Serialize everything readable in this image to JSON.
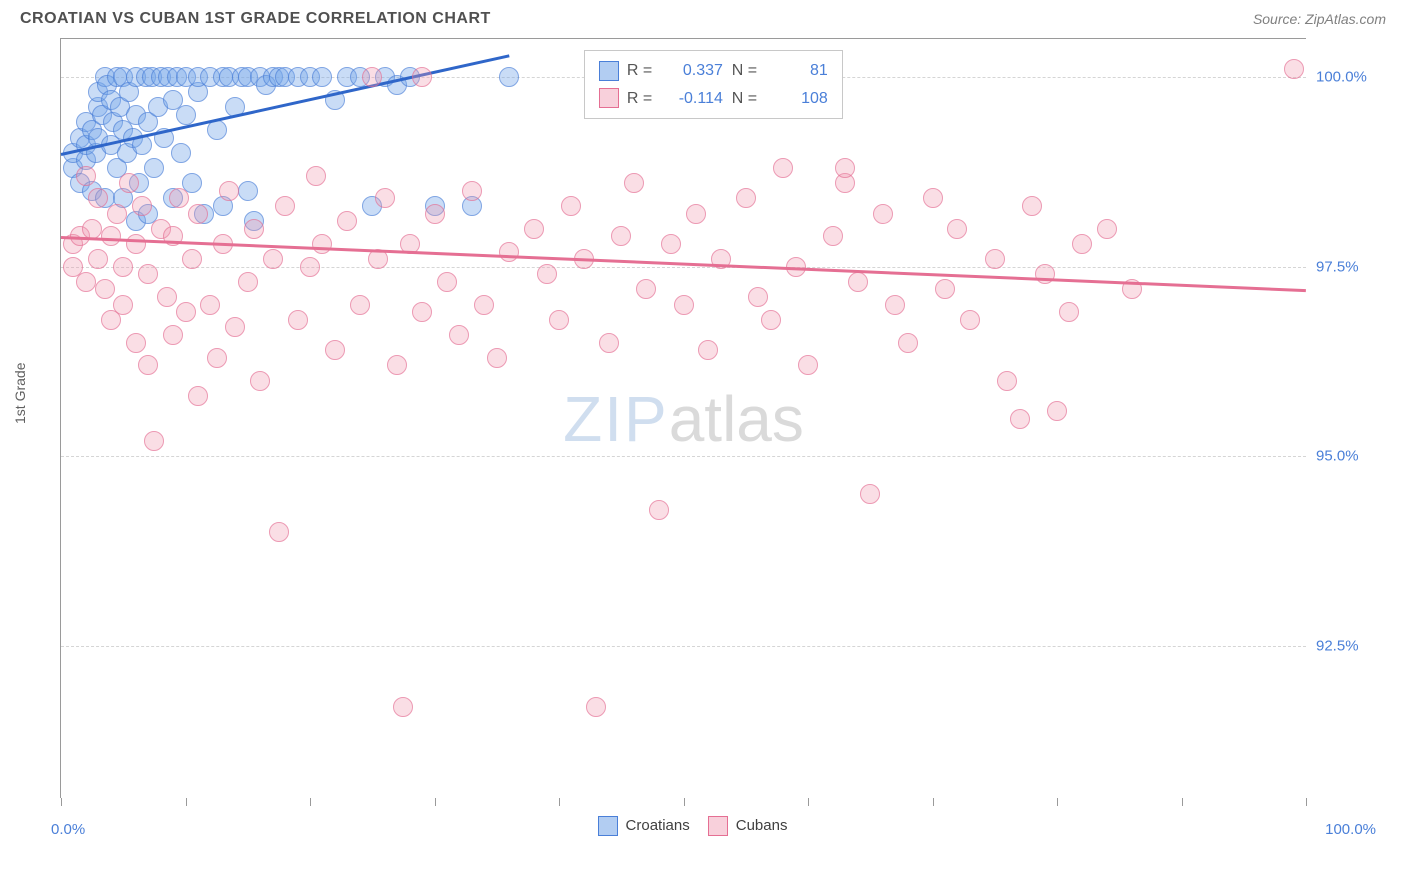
{
  "header": {
    "title": "CROATIAN VS CUBAN 1ST GRADE CORRELATION CHART",
    "source": "Source: ZipAtlas.com"
  },
  "chart": {
    "type": "scatter",
    "ylabel": "1st Grade",
    "xlim": [
      0,
      100
    ],
    "ylim": [
      90.5,
      100.5
    ],
    "xlim_labels": [
      "0.0%",
      "100.0%"
    ],
    "ytick_values": [
      92.5,
      95.0,
      97.5,
      100.0
    ],
    "ytick_labels": [
      "92.5%",
      "95.0%",
      "97.5%",
      "100.0%"
    ],
    "xtick_values": [
      0,
      10,
      20,
      30,
      40,
      50,
      60,
      70,
      80,
      90,
      100
    ],
    "marker_radius": 10,
    "background_color": "#ffffff",
    "grid_color": "#d5d5d5",
    "axis_color": "#9a9a9a",
    "tick_color": "#4a7fd8",
    "stats_box": {
      "left_pct": 42,
      "top_pct": 1.5
    },
    "series": [
      {
        "name": "Croatians",
        "fill": "rgba(115,164,232,0.55)",
        "stroke": "#4a7fd8",
        "trend_color": "#2f66c9",
        "R": "0.337",
        "N": "81",
        "trend": {
          "x1": 0,
          "y1": 99.0,
          "x2": 36,
          "y2": 100.3
        },
        "points": [
          [
            1,
            98.8
          ],
          [
            1,
            99.0
          ],
          [
            1.5,
            99.2
          ],
          [
            1.5,
            98.6
          ],
          [
            2,
            98.9
          ],
          [
            2,
            99.4
          ],
          [
            2,
            99.1
          ],
          [
            2.5,
            98.5
          ],
          [
            2.5,
            99.3
          ],
          [
            2.8,
            99.0
          ],
          [
            3,
            99.6
          ],
          [
            3,
            99.2
          ],
          [
            3,
            99.8
          ],
          [
            3.3,
            99.5
          ],
          [
            3.5,
            100.0
          ],
          [
            3.5,
            98.4
          ],
          [
            3.7,
            99.9
          ],
          [
            4,
            99.1
          ],
          [
            4,
            99.7
          ],
          [
            4.2,
            99.4
          ],
          [
            4.5,
            100.0
          ],
          [
            4.5,
            98.8
          ],
          [
            4.7,
            99.6
          ],
          [
            5,
            98.4
          ],
          [
            5,
            99.3
          ],
          [
            5,
            100.0
          ],
          [
            5.3,
            99.0
          ],
          [
            5.5,
            99.8
          ],
          [
            5.8,
            99.2
          ],
          [
            6,
            98.1
          ],
          [
            6,
            99.5
          ],
          [
            6,
            100.0
          ],
          [
            6.3,
            98.6
          ],
          [
            6.5,
            99.1
          ],
          [
            6.8,
            100.0
          ],
          [
            7,
            98.2
          ],
          [
            7,
            99.4
          ],
          [
            7.3,
            100.0
          ],
          [
            7.5,
            98.8
          ],
          [
            7.8,
            99.6
          ],
          [
            8,
            100.0
          ],
          [
            8.3,
            99.2
          ],
          [
            8.6,
            100.0
          ],
          [
            9,
            98.4
          ],
          [
            9,
            99.7
          ],
          [
            9.3,
            100.0
          ],
          [
            9.6,
            99.0
          ],
          [
            10,
            99.5
          ],
          [
            10,
            100.0
          ],
          [
            10.5,
            98.6
          ],
          [
            11,
            99.8
          ],
          [
            11,
            100.0
          ],
          [
            11.5,
            98.2
          ],
          [
            12,
            100.0
          ],
          [
            12.5,
            99.3
          ],
          [
            13,
            98.3
          ],
          [
            13,
            100.0
          ],
          [
            13.5,
            100.0
          ],
          [
            14,
            99.6
          ],
          [
            14.5,
            100.0
          ],
          [
            15,
            98.5
          ],
          [
            15,
            100.0
          ],
          [
            15.5,
            98.1
          ],
          [
            16,
            100.0
          ],
          [
            16.5,
            99.9
          ],
          [
            17,
            100.0
          ],
          [
            17.5,
            100.0
          ],
          [
            18,
            100.0
          ],
          [
            19,
            100.0
          ],
          [
            20,
            100.0
          ],
          [
            21,
            100.0
          ],
          [
            22,
            99.7
          ],
          [
            23,
            100.0
          ],
          [
            24,
            100.0
          ],
          [
            25,
            98.3
          ],
          [
            26,
            100.0
          ],
          [
            27,
            99.9
          ],
          [
            28,
            100.0
          ],
          [
            30,
            98.3
          ],
          [
            33,
            98.3
          ],
          [
            36,
            100.0
          ]
        ]
      },
      {
        "name": "Cubans",
        "fill": "rgba(240,150,175,0.45)",
        "stroke": "#e56f93",
        "trend_color": "#e56f93",
        "R": "-0.114",
        "N": "108",
        "trend": {
          "x1": 0,
          "y1": 97.9,
          "x2": 100,
          "y2": 97.2
        },
        "points": [
          [
            1,
            97.8
          ],
          [
            1,
            97.5
          ],
          [
            1.5,
            97.9
          ],
          [
            2,
            98.7
          ],
          [
            2,
            97.3
          ],
          [
            2.5,
            98.0
          ],
          [
            3,
            97.6
          ],
          [
            3,
            98.4
          ],
          [
            3.5,
            97.2
          ],
          [
            4,
            97.9
          ],
          [
            4,
            96.8
          ],
          [
            4.5,
            98.2
          ],
          [
            5,
            97.5
          ],
          [
            5,
            97.0
          ],
          [
            5.5,
            98.6
          ],
          [
            6,
            96.5
          ],
          [
            6,
            97.8
          ],
          [
            6.5,
            98.3
          ],
          [
            7,
            96.2
          ],
          [
            7,
            97.4
          ],
          [
            7.5,
            95.2
          ],
          [
            8,
            98.0
          ],
          [
            8.5,
            97.1
          ],
          [
            9,
            96.6
          ],
          [
            9,
            97.9
          ],
          [
            9.5,
            98.4
          ],
          [
            10,
            96.9
          ],
          [
            10.5,
            97.6
          ],
          [
            11,
            95.8
          ],
          [
            11,
            98.2
          ],
          [
            12,
            97.0
          ],
          [
            12.5,
            96.3
          ],
          [
            13,
            97.8
          ],
          [
            13.5,
            98.5
          ],
          [
            14,
            96.7
          ],
          [
            15,
            97.3
          ],
          [
            15.5,
            98.0
          ],
          [
            16,
            96.0
          ],
          [
            17,
            97.6
          ],
          [
            17.5,
            94.0
          ],
          [
            18,
            98.3
          ],
          [
            19,
            96.8
          ],
          [
            20,
            97.5
          ],
          [
            20.5,
            98.7
          ],
          [
            21,
            97.8
          ],
          [
            22,
            96.4
          ],
          [
            23,
            98.1
          ],
          [
            24,
            97.0
          ],
          [
            25,
            100.0
          ],
          [
            25.5,
            97.6
          ],
          [
            26,
            98.4
          ],
          [
            27,
            96.2
          ],
          [
            27.5,
            91.7
          ],
          [
            28,
            97.8
          ],
          [
            29,
            96.9
          ],
          [
            30,
            98.2
          ],
          [
            31,
            97.3
          ],
          [
            32,
            96.6
          ],
          [
            33,
            98.5
          ],
          [
            34,
            97.0
          ],
          [
            35,
            96.3
          ],
          [
            36,
            97.7
          ],
          [
            38,
            98.0
          ],
          [
            39,
            97.4
          ],
          [
            40,
            96.8
          ],
          [
            41,
            98.3
          ],
          [
            42,
            97.6
          ],
          [
            43,
            91.7
          ],
          [
            44,
            96.5
          ],
          [
            45,
            97.9
          ],
          [
            46,
            98.6
          ],
          [
            47,
            97.2
          ],
          [
            48,
            94.3
          ],
          [
            49,
            97.8
          ],
          [
            50,
            97.0
          ],
          [
            51,
            98.2
          ],
          [
            52,
            96.4
          ],
          [
            53,
            97.6
          ],
          [
            55,
            98.4
          ],
          [
            56,
            97.1
          ],
          [
            57,
            96.8
          ],
          [
            58,
            98.8
          ],
          [
            59,
            97.5
          ],
          [
            60,
            96.2
          ],
          [
            62,
            97.9
          ],
          [
            63,
            98.6
          ],
          [
            64,
            97.3
          ],
          [
            65,
            94.5
          ],
          [
            66,
            98.2
          ],
          [
            67,
            97.0
          ],
          [
            68,
            96.5
          ],
          [
            70,
            98.4
          ],
          [
            71,
            97.2
          ],
          [
            72,
            98.0
          ],
          [
            73,
            96.8
          ],
          [
            75,
            97.6
          ],
          [
            76,
            96.0
          ],
          [
            77,
            95.5
          ],
          [
            78,
            98.3
          ],
          [
            79,
            97.4
          ],
          [
            80,
            95.6
          ],
          [
            81,
            96.9
          ],
          [
            82,
            97.8
          ],
          [
            84,
            98.0
          ],
          [
            86,
            97.2
          ],
          [
            99,
            100.1
          ],
          [
            63,
            98.8
          ],
          [
            29,
            100.0
          ]
        ]
      }
    ],
    "watermark": {
      "zip": "ZIP",
      "atlas": "atlas"
    }
  },
  "legend": {
    "items": [
      "Croatians",
      "Cubans"
    ]
  }
}
